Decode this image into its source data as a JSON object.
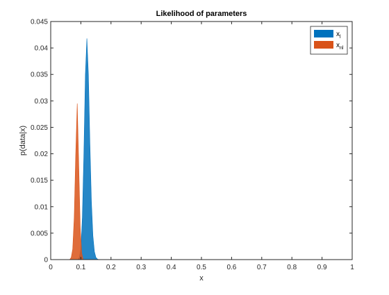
{
  "chart_data": {
    "type": "area",
    "title": "Likelihood of parameters",
    "xlabel": "x",
    "ylabel": "p(data|x)",
    "xlim": [
      0,
      1
    ],
    "ylim": [
      0,
      0.045
    ],
    "x_ticks": [
      0,
      0.1,
      0.2,
      0.3,
      0.4,
      0.5,
      0.6,
      0.7,
      0.8,
      0.9,
      1
    ],
    "y_ticks": [
      0,
      0.005,
      0.01,
      0.015,
      0.02,
      0.025,
      0.03,
      0.035,
      0.04,
      0.045
    ],
    "x_tick_labels": [
      "0",
      "0.1",
      "0.2",
      "0.3",
      "0.4",
      "0.5",
      "0.6",
      "0.7",
      "0.8",
      "0.9",
      "1"
    ],
    "y_tick_labels": [
      "0",
      "0.005",
      "0.01",
      "0.015",
      "0.02",
      "0.025",
      "0.03",
      "0.035",
      "0.04",
      "0.045"
    ],
    "grid": false,
    "legend_position": "top-right",
    "series": [
      {
        "name": "x_l",
        "legend_main": "x",
        "legend_sub": "l",
        "color": "#0072BD",
        "x": [
          0.09,
          0.095,
          0.1,
          0.105,
          0.11,
          0.115,
          0.12,
          0.125,
          0.13,
          0.135,
          0.14,
          0.145,
          0.15,
          0.155,
          0.16
        ],
        "values": [
          0.0,
          0.0004,
          0.002,
          0.008,
          0.02,
          0.035,
          0.0418,
          0.035,
          0.022,
          0.011,
          0.0045,
          0.0015,
          0.0004,
          0.0001,
          0.0
        ]
      },
      {
        "name": "x_nl",
        "legend_main": "x",
        "legend_sub": "nl",
        "color": "#D95319",
        "x": [
          0.063,
          0.068,
          0.073,
          0.078,
          0.083,
          0.088,
          0.093,
          0.098,
          0.103,
          0.108
        ],
        "values": [
          0.0,
          0.0004,
          0.002,
          0.008,
          0.02,
          0.0295,
          0.018,
          0.006,
          0.0012,
          0.0
        ]
      }
    ]
  }
}
